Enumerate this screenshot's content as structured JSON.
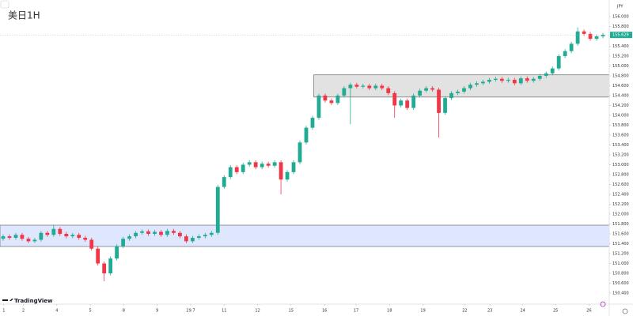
{
  "chart_data": {
    "type": "candlestick",
    "title": "美日1H",
    "currency": "JPY",
    "brand": "TradingView",
    "up_color": "#22ab94",
    "down_color": "#f23645",
    "grid": false,
    "xlim": [
      -0.5,
      96
    ],
    "ylim": [
      150.176,
      156.336
    ],
    "xticks": [
      {
        "value": 0.1,
        "label": "1"
      },
      {
        "value": 3.2,
        "label": "2"
      },
      {
        "value": 8.5,
        "label": "4"
      },
      {
        "value": 13.8,
        "label": "5"
      },
      {
        "value": 19.1,
        "label": "8"
      },
      {
        "value": 24.4,
        "label": "9"
      },
      29.7,
      {
        "value": 35,
        "label": "11"
      },
      {
        "value": 40.3,
        "label": "12"
      },
      {
        "value": 45.6,
        "label": "15"
      },
      {
        "value": 50.9,
        "label": "16"
      },
      {
        "value": 55.9,
        "label": "17"
      },
      {
        "value": 61.2,
        "label": "18"
      },
      {
        "value": 66.5,
        "label": "19"
      },
      {
        "value": 73.1,
        "label": "22"
      },
      {
        "value": 77.1,
        "label": "23"
      },
      {
        "value": 82.3,
        "label": "24"
      },
      {
        "value": 87.5,
        "label": "25"
      },
      {
        "value": 92.8,
        "label": "26"
      }
    ],
    "yticks": [
      {
        "value": 150.4,
        "label": "150.400"
      },
      {
        "value": 150.6,
        "label": "150.600"
      },
      {
        "value": 150.8,
        "label": "150.800"
      },
      {
        "value": 151.0,
        "label": "151.000"
      },
      {
        "value": 151.2,
        "label": "151.200"
      },
      {
        "value": 151.4,
        "label": "151.400"
      },
      {
        "value": 151.6,
        "label": "151.600"
      },
      {
        "value": 151.8,
        "label": "151.800"
      },
      {
        "value": 152.0,
        "label": "152.000"
      },
      {
        "value": 152.2,
        "label": "152.200"
      },
      {
        "value": 152.4,
        "label": "152.400"
      },
      {
        "value": 152.6,
        "label": "152.600"
      },
      {
        "value": 152.8,
        "label": "152.800"
      },
      {
        "value": 153.0,
        "label": "153.000"
      },
      {
        "value": 153.2,
        "label": "153.200"
      },
      {
        "value": 153.4,
        "label": "153.400"
      },
      {
        "value": 153.6,
        "label": "153.600"
      },
      {
        "value": 153.8,
        "label": "153.800"
      },
      {
        "value": 154.0,
        "label": "154.000"
      },
      {
        "value": 154.2,
        "label": "154.200"
      },
      {
        "value": 154.4,
        "label": "154.400"
      },
      {
        "value": 154.6,
        "label": "154.600"
      },
      {
        "value": 154.8,
        "label": "154.800"
      },
      {
        "value": 155.0,
        "label": "155.000"
      },
      {
        "value": 155.2,
        "label": "155.200"
      },
      {
        "value": 155.4,
        "label": "155.400"
      },
      {
        "value": 155.6,
        "label": "155.600"
      },
      {
        "value": 155.8,
        "label": "155.800"
      },
      {
        "value": 156.0,
        "label": "156.000"
      }
    ],
    "zones": [
      {
        "from": 151.344,
        "to": 151.776,
        "start": -0.5,
        "color": "#dfe7ff"
      },
      {
        "from": 154.37,
        "to": 154.82,
        "start": 49.2,
        "color": "#e2e2e2"
      }
    ],
    "last_price": 155.629,
    "last_color": "#22ab94",
    "open": [
      151.5,
      151.55,
      151.52,
      151.58,
      151.5,
      151.45,
      151.48,
      151.62,
      151.58,
      151.7,
      151.6,
      151.55,
      151.58,
      151.52,
      151.48,
      151.3,
      151.0,
      150.8,
      151.1,
      151.35,
      151.5,
      151.55,
      151.62,
      151.65,
      151.6,
      151.64,
      151.58,
      151.66,
      151.62,
      151.55,
      151.45,
      151.52,
      151.55,
      151.58,
      151.62,
      152.55,
      152.75,
      152.95,
      152.85,
      153.0,
      153.05,
      152.95,
      153.02,
      152.98,
      153.05,
      152.7,
      152.85,
      153.05,
      153.45,
      153.75,
      153.95,
      154.4,
      154.3,
      154.25,
      154.4,
      154.55,
      154.62,
      154.58,
      154.6,
      154.55,
      154.6,
      154.55,
      154.45,
      154.2,
      154.3,
      154.15,
      154.4,
      154.5,
      154.55,
      154.52,
      154.05,
      154.35,
      154.45,
      154.48,
      154.55,
      154.62,
      154.65,
      154.68,
      154.72,
      154.74,
      154.7,
      154.72,
      154.65,
      154.75,
      154.7,
      154.74,
      154.8,
      154.85,
      154.95,
      155.2,
      155.3,
      155.45,
      155.7,
      155.65,
      155.55,
      155.6
    ],
    "close": [
      151.55,
      151.52,
      151.58,
      151.5,
      151.45,
      151.48,
      151.62,
      151.58,
      151.7,
      151.6,
      151.55,
      151.58,
      151.52,
      151.48,
      151.3,
      151.0,
      150.8,
      151.1,
      151.35,
      151.5,
      151.55,
      151.62,
      151.65,
      151.6,
      151.64,
      151.58,
      151.66,
      151.62,
      151.55,
      151.45,
      151.52,
      151.55,
      151.58,
      151.62,
      152.55,
      152.75,
      152.95,
      152.85,
      153.0,
      153.05,
      152.95,
      153.02,
      152.98,
      153.05,
      152.7,
      152.85,
      153.05,
      153.45,
      153.75,
      153.95,
      154.4,
      154.3,
      154.25,
      154.4,
      154.55,
      154.62,
      154.58,
      154.6,
      154.55,
      154.6,
      154.55,
      154.45,
      154.2,
      154.3,
      154.15,
      154.4,
      154.5,
      154.55,
      154.52,
      154.05,
      154.35,
      154.45,
      154.48,
      154.55,
      154.62,
      154.65,
      154.68,
      154.72,
      154.74,
      154.7,
      154.72,
      154.65,
      154.75,
      154.7,
      154.74,
      154.8,
      154.85,
      154.95,
      155.2,
      155.3,
      155.45,
      155.7,
      155.65,
      155.55,
      155.6,
      155.63
    ],
    "high": [
      151.59,
      151.59,
      151.62,
      151.62,
      151.54,
      151.52,
      151.66,
      151.66,
      151.78,
      151.74,
      151.64,
      151.62,
      151.62,
      151.56,
      151.52,
      151.34,
      151.04,
      151.14,
      151.39,
      151.54,
      151.59,
      151.66,
      151.69,
      151.69,
      151.68,
      151.68,
      151.7,
      151.7,
      151.66,
      151.59,
      151.56,
      151.59,
      151.62,
      151.66,
      152.59,
      152.79,
      152.99,
      152.99,
      153.04,
      153.09,
      153.09,
      153.06,
      153.06,
      153.09,
      153.09,
      152.89,
      153.09,
      153.49,
      153.79,
      153.99,
      154.44,
      154.44,
      154.34,
      154.44,
      154.59,
      154.66,
      154.66,
      154.64,
      154.64,
      154.64,
      154.64,
      154.59,
      154.49,
      154.34,
      154.34,
      154.44,
      154.54,
      154.59,
      154.59,
      154.56,
      154.39,
      154.49,
      154.52,
      154.59,
      154.66,
      154.69,
      154.72,
      154.76,
      154.78,
      154.78,
      154.76,
      154.76,
      154.79,
      154.79,
      154.78,
      154.84,
      154.89,
      154.99,
      155.24,
      155.34,
      155.49,
      155.78,
      155.74,
      155.69,
      155.64,
      155.67
    ],
    "low": [
      151.46,
      151.48,
      151.48,
      151.46,
      151.41,
      151.41,
      151.44,
      151.54,
      151.54,
      151.56,
      151.51,
      151.51,
      151.48,
      151.44,
      151.26,
      150.96,
      150.64,
      150.76,
      151.06,
      151.31,
      151.46,
      151.51,
      151.58,
      151.56,
      151.56,
      151.54,
      151.54,
      151.58,
      151.51,
      151.41,
      151.41,
      151.48,
      151.51,
      151.54,
      151.58,
      152.51,
      152.71,
      152.81,
      152.81,
      152.96,
      152.91,
      152.91,
      152.94,
      152.94,
      152.4,
      152.66,
      152.81,
      153.01,
      153.41,
      153.71,
      153.91,
      154.26,
      154.21,
      154.21,
      154.36,
      153.82,
      154.54,
      154.54,
      154.51,
      154.51,
      154.51,
      154.41,
      153.95,
      154.16,
      154.11,
      154.11,
      154.36,
      154.46,
      154.48,
      153.55,
      154.01,
      154.31,
      154.41,
      154.44,
      154.51,
      154.58,
      154.61,
      154.64,
      154.68,
      154.66,
      154.66,
      154.61,
      154.61,
      154.66,
      154.66,
      154.7,
      154.76,
      154.81,
      154.91,
      155.16,
      155.26,
      155.41,
      155.61,
      155.51,
      155.51,
      155.56
    ]
  }
}
